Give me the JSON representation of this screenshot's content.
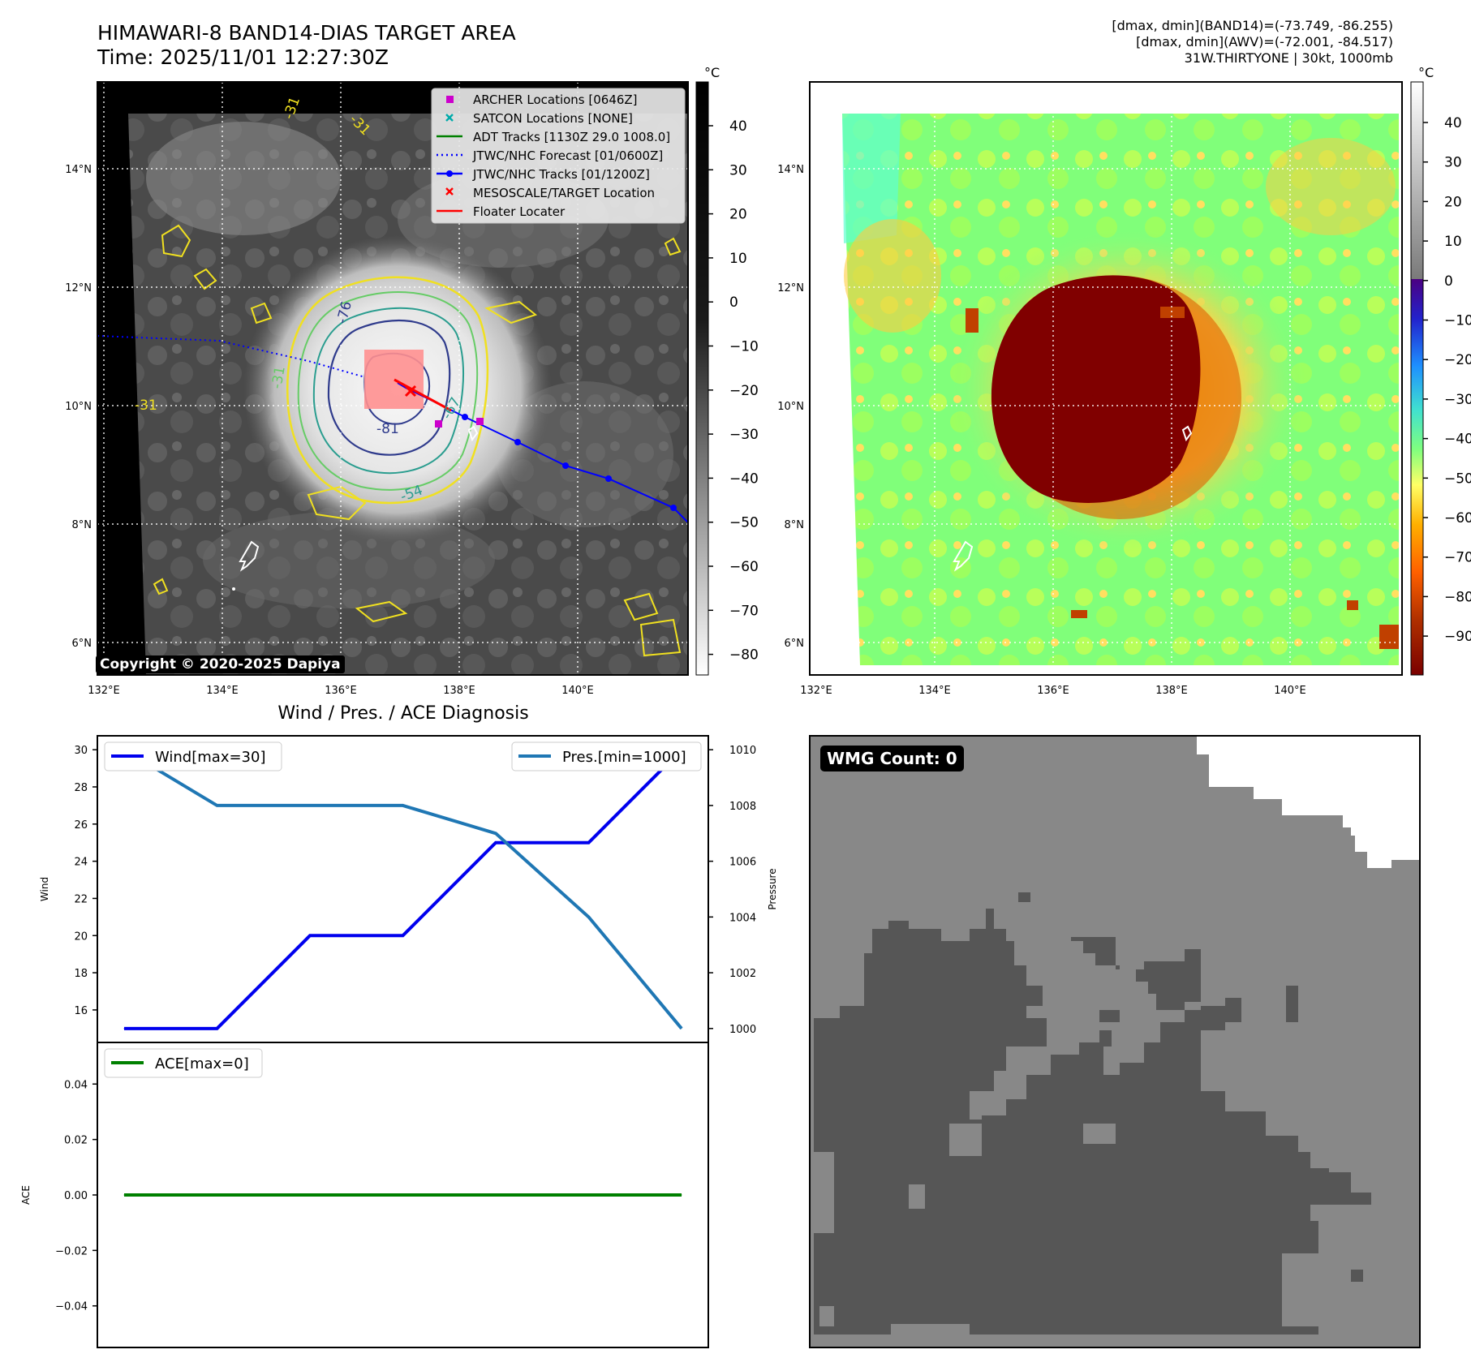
{
  "header": {
    "title": "HIMAWARI-8 BAND14-DIAS TARGET AREA",
    "time": "Time: 2025/11/01 12:27:30Z",
    "info_lines": [
      "[dmax, dmin](BAND14)=(-73.749, -86.255)",
      "[dmax, dmin](AWV)=(-72.001, -84.517)",
      "31W.THIRTYONE | 30kt, 1000mb"
    ]
  },
  "colors": {
    "wind": "#0000ee",
    "pressure": "#1f77b4",
    "ace": "#008000",
    "jtwc_track": "#0000ff",
    "floater": "#ff0000",
    "archer": "#cc00cc",
    "satcon": "#00aaaa",
    "adt": "#008000"
  },
  "map_common": {
    "x_ticks": [
      "132°E",
      "134°E",
      "136°E",
      "138°E",
      "140°E"
    ],
    "y_ticks": [
      "14°N",
      "12°N",
      "10°N",
      "8°N",
      "6°N"
    ]
  },
  "map_left": {
    "colorbar_unit": "°C",
    "colorbar_ticks": [
      "40",
      "30",
      "20",
      "10",
      "0",
      "−10",
      "−20",
      "−30",
      "−40",
      "−50",
      "−60",
      "−70",
      "−80"
    ],
    "contour_labels": [
      "-31",
      "-31",
      "-31",
      "-31",
      "-54",
      "-76",
      "-81",
      "-67"
    ],
    "copyright": "Copyright © 2020-2025 Dapiya",
    "legend": [
      {
        "label": "ARCHER Locations [0646Z]",
        "marker": "square",
        "color": "#cc00cc"
      },
      {
        "label": "SATCON Locations [NONE]",
        "marker": "x",
        "color": "#00aaaa"
      },
      {
        "label": "ADT Tracks [1130Z 29.0 1008.0]",
        "marker": "line",
        "color": "#008000"
      },
      {
        "label": "JTWC/NHC Forecast [01/0600Z]",
        "marker": "dotted",
        "color": "#0000ff"
      },
      {
        "label": "JTWC/NHC Tracks [01/1200Z]",
        "marker": "line-dot",
        "color": "#0000ff"
      },
      {
        "label": "MESOSCALE/TARGET Location",
        "marker": "x",
        "color": "#ff0000"
      },
      {
        "label": "Floater Locater",
        "marker": "line",
        "color": "#ff0000"
      }
    ]
  },
  "map_right": {
    "colorbar_unit": "°C",
    "colorbar_ticks": [
      "40",
      "30",
      "20",
      "10",
      "0",
      "−10",
      "−20",
      "−30",
      "−40",
      "−50",
      "−60",
      "−70",
      "−80",
      "−90"
    ]
  },
  "diagnosis": {
    "title": "Wind / Pres. / ACE Diagnosis",
    "wind_legend": "Wind[max=30]",
    "pressure_legend": "Pres.[min=1000]",
    "ace_legend": "ACE[max=0]",
    "wind_axis_label": "Wind",
    "pressure_axis_label": "Pressure",
    "ace_axis_label": "ACE"
  },
  "wmg": {
    "label": "WMG Count: 0"
  },
  "chart_data": [
    {
      "type": "line",
      "series": [
        {
          "name": "Wind[max=30]",
          "axis": "left",
          "values": [
            15,
            15,
            20,
            20,
            25,
            25,
            30
          ]
        },
        {
          "name": "Pres.[min=1000]",
          "axis": "right",
          "values": [
            1010,
            1008,
            1008,
            1008,
            1007,
            1004,
            1000
          ]
        }
      ],
      "x": [
        0,
        1,
        2,
        3,
        4,
        5,
        6
      ],
      "ylabel": "Wind",
      "y2label": "Pressure",
      "ylim": [
        14.25,
        30.75
      ],
      "y2lim": [
        999.5,
        1010.5
      ],
      "yticks": [
        16,
        18,
        20,
        22,
        24,
        26,
        28,
        30
      ],
      "y2ticks": [
        1000,
        1002,
        1004,
        1006,
        1008,
        1010
      ],
      "legend": [
        "upper-left",
        "upper-right"
      ]
    },
    {
      "type": "line",
      "series": [
        {
          "name": "ACE[max=0]",
          "values": [
            0,
            0,
            0,
            0,
            0,
            0,
            0
          ]
        }
      ],
      "x": [
        0,
        1,
        2,
        3,
        4,
        5,
        6
      ],
      "ylabel": "ACE",
      "ylim": [
        -0.055,
        0.055
      ],
      "yticks": [
        0.04,
        0.02,
        0.0,
        -0.02,
        -0.04
      ],
      "ytick_labels": [
        "0.04",
        "0.02",
        "0.00",
        "−0.02",
        "−0.04"
      ],
      "legend": "upper-left"
    }
  ]
}
